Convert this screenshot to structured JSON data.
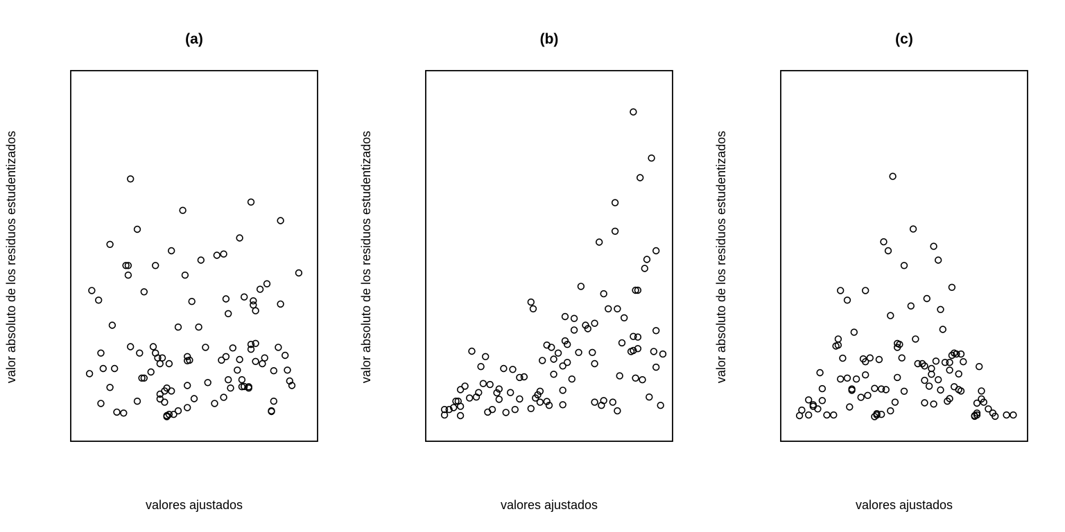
{
  "chart_data": [
    {
      "type": "scatter",
      "title": "(a)",
      "xlabel": "valores ajustados",
      "ylabel": "valor absoluto de los residuos estudentizados",
      "axes": "none",
      "xlim": [
        0,
        100
      ],
      "ylim": [
        0,
        100
      ],
      "points": [
        [
          4,
          17.2
        ],
        [
          5,
          43.1
        ],
        [
          8,
          40.1
        ],
        [
          9,
          7.9
        ],
        [
          9,
          23.6
        ],
        [
          10,
          18.8
        ],
        [
          13,
          12.9
        ],
        [
          13,
          57.5
        ],
        [
          14,
          32.3
        ],
        [
          15,
          18.8
        ],
        [
          16,
          5.2
        ],
        [
          19,
          4.9
        ],
        [
          20,
          50.9
        ],
        [
          21,
          47.9
        ],
        [
          21,
          50.9
        ],
        [
          22,
          77.9
        ],
        [
          22,
          25.6
        ],
        [
          25,
          62.2
        ],
        [
          25,
          8.6
        ],
        [
          26,
          23.6
        ],
        [
          27,
          15.8
        ],
        [
          28,
          15.8
        ],
        [
          28,
          42.7
        ],
        [
          31,
          17.7
        ],
        [
          32,
          25.6
        ],
        [
          33,
          50.9
        ],
        [
          33,
          23.6
        ],
        [
          34,
          22.1
        ],
        [
          35,
          9.3
        ],
        [
          35,
          20.3
        ],
        [
          35,
          10.8
        ],
        [
          36,
          22.1
        ],
        [
          37,
          8.3
        ],
        [
          37,
          11.8
        ],
        [
          38,
          3.8
        ],
        [
          38,
          12.7
        ],
        [
          38,
          4.1
        ],
        [
          39,
          4.5
        ],
        [
          39,
          20.3
        ],
        [
          40,
          55.5
        ],
        [
          40,
          11.8
        ],
        [
          41,
          4.5
        ],
        [
          43,
          5.6
        ],
        [
          43,
          31.7
        ],
        [
          45,
          68.1
        ],
        [
          46,
          47.9
        ],
        [
          47,
          6.6
        ],
        [
          47,
          13.5
        ],
        [
          47,
          22.5
        ],
        [
          47,
          21.2
        ],
        [
          48,
          21.4
        ],
        [
          49,
          39.7
        ],
        [
          50,
          9.4
        ],
        [
          52,
          31.7
        ],
        [
          53,
          52.6
        ],
        [
          55,
          25.4
        ],
        [
          56,
          14.4
        ],
        [
          59,
          7.9
        ],
        [
          60,
          54.1
        ],
        [
          62,
          21.4
        ],
        [
          63,
          9.8
        ],
        [
          63,
          54.5
        ],
        [
          64,
          40.5
        ],
        [
          64,
          22.5
        ],
        [
          65,
          35.9
        ],
        [
          65,
          15.3
        ],
        [
          66,
          12.7
        ],
        [
          67,
          25.2
        ],
        [
          69,
          18.3
        ],
        [
          70,
          59.5
        ],
        [
          70,
          21.6
        ],
        [
          71,
          13.1
        ],
        [
          71,
          15.3
        ],
        [
          72,
          13.2
        ],
        [
          72,
          41.1
        ],
        [
          74,
          13.1
        ],
        [
          74,
          12.7
        ],
        [
          75,
          70.7
        ],
        [
          75,
          26.3
        ],
        [
          75,
          24.8
        ],
        [
          76,
          38.6
        ],
        [
          76,
          39.9
        ],
        [
          77,
          36.8
        ],
        [
          77,
          26.6
        ],
        [
          77,
          21.0
        ],
        [
          79,
          43.5
        ],
        [
          80,
          20.3
        ],
        [
          81,
          22.1
        ],
        [
          82,
          45.2
        ],
        [
          84,
          5.4
        ],
        [
          84,
          5.6
        ],
        [
          85,
          18.1
        ],
        [
          85,
          8.6
        ],
        [
          87,
          25.4
        ],
        [
          88,
          64.9
        ],
        [
          88,
          38.9
        ],
        [
          90,
          22.9
        ],
        [
          91,
          18.3
        ],
        [
          92,
          14.9
        ],
        [
          93,
          13.5
        ],
        [
          96,
          48.6
        ]
      ]
    },
    {
      "type": "scatter",
      "title": "(b)",
      "xlabel": "valores ajustados",
      "ylabel": "valor absoluto de los residuos estudentizados",
      "axes": "none",
      "xlim": [
        0,
        100
      ],
      "ylim": [
        0,
        100
      ],
      "points": [
        [
          4,
          4.3
        ],
        [
          4,
          6.0
        ],
        [
          6,
          6.0
        ],
        [
          8,
          6.6
        ],
        [
          9,
          8.6
        ],
        [
          10,
          8.6
        ],
        [
          11,
          12.2
        ],
        [
          11,
          7.0
        ],
        [
          11,
          4.1
        ],
        [
          13,
          13.3
        ],
        [
          15,
          9.6
        ],
        [
          16,
          24.2
        ],
        [
          18,
          9.9
        ],
        [
          19,
          11.3
        ],
        [
          20,
          19.4
        ],
        [
          21,
          14.1
        ],
        [
          22,
          22.5
        ],
        [
          23,
          5.2
        ],
        [
          24,
          13.8
        ],
        [
          25,
          6.0
        ],
        [
          27,
          11.2
        ],
        [
          28,
          12.4
        ],
        [
          28,
          9.2
        ],
        [
          30,
          18.8
        ],
        [
          31,
          5.1
        ],
        [
          33,
          11.3
        ],
        [
          34,
          18.5
        ],
        [
          35,
          6.0
        ],
        [
          37,
          9.3
        ],
        [
          37,
          16.0
        ],
        [
          39,
          16.2
        ],
        [
          42,
          6.3
        ],
        [
          42,
          39.5
        ],
        [
          43,
          37.4
        ],
        [
          44,
          9.6
        ],
        [
          45,
          10.6
        ],
        [
          46,
          11.7
        ],
        [
          46,
          8.3
        ],
        [
          47,
          21.3
        ],
        [
          49,
          26.1
        ],
        [
          49,
          8.5
        ],
        [
          50,
          7.3
        ],
        [
          51,
          25.4
        ],
        [
          52,
          17.0
        ],
        [
          52,
          21.7
        ],
        [
          54,
          23.6
        ],
        [
          56,
          12.0
        ],
        [
          56,
          19.6
        ],
        [
          56,
          7.5
        ],
        [
          57,
          35.0
        ],
        [
          57,
          27.4
        ],
        [
          58,
          26.3
        ],
        [
          58,
          20.7
        ],
        [
          60,
          15.5
        ],
        [
          61,
          34.4
        ],
        [
          61,
          30.8
        ],
        [
          63,
          23.8
        ],
        [
          64,
          44.4
        ],
        [
          66,
          32.3
        ],
        [
          67,
          31.2
        ],
        [
          69,
          23.8
        ],
        [
          70,
          32.9
        ],
        [
          70,
          20.3
        ],
        [
          70,
          8.3
        ],
        [
          72,
          58.2
        ],
        [
          73,
          7.3
        ],
        [
          74,
          8.8
        ],
        [
          74,
          42.1
        ],
        [
          76,
          37.4
        ],
        [
          78,
          8.3
        ],
        [
          79,
          61.6
        ],
        [
          79,
          70.5
        ],
        [
          80,
          5.6
        ],
        [
          80,
          37.4
        ],
        [
          81,
          16.5
        ],
        [
          82,
          26.8
        ],
        [
          83,
          34.6
        ],
        [
          86,
          24.1
        ],
        [
          87,
          24.4
        ],
        [
          87,
          28.8
        ],
        [
          87,
          98.8
        ],
        [
          88,
          15.8
        ],
        [
          88,
          43.2
        ],
        [
          89,
          25.0
        ],
        [
          89,
          28.6
        ],
        [
          89,
          43.2
        ],
        [
          90,
          78.3
        ],
        [
          91,
          15.3
        ],
        [
          92,
          50.0
        ],
        [
          93,
          52.8
        ],
        [
          94,
          9.9
        ],
        [
          95,
          84.4
        ],
        [
          96,
          24.1
        ],
        [
          97,
          19.2
        ],
        [
          97,
          30.6
        ],
        [
          97,
          55.5
        ],
        [
          99,
          7.3
        ],
        [
          100,
          23.3
        ]
      ]
    },
    {
      "type": "scatter",
      "title": "(c)",
      "xlabel": "valores ajustados",
      "ylabel": "valor absoluto de los residuos estudentizados",
      "axes": "none",
      "xlim": [
        0,
        100
      ],
      "ylim": [
        0,
        100
      ],
      "points": [
        [
          4,
          4.1
        ],
        [
          5,
          5.8
        ],
        [
          8,
          4.3
        ],
        [
          8,
          9.0
        ],
        [
          10,
          7.0
        ],
        [
          10,
          7.5
        ],
        [
          12,
          6.2
        ],
        [
          13,
          17.5
        ],
        [
          14,
          8.8
        ],
        [
          14,
          12.5
        ],
        [
          16,
          4.3
        ],
        [
          19,
          4.3
        ],
        [
          20,
          25.8
        ],
        [
          21,
          26.1
        ],
        [
          21,
          28.0
        ],
        [
          22,
          43.1
        ],
        [
          22,
          15.5
        ],
        [
          23,
          22.0
        ],
        [
          25,
          40.1
        ],
        [
          25,
          15.8
        ],
        [
          26,
          6.8
        ],
        [
          27,
          12.0
        ],
        [
          27,
          12.4
        ],
        [
          28,
          30.1
        ],
        [
          29,
          15.5
        ],
        [
          31,
          9.8
        ],
        [
          32,
          21.8
        ],
        [
          33,
          20.9
        ],
        [
          33,
          16.8
        ],
        [
          33,
          43.1
        ],
        [
          34,
          10.4
        ],
        [
          35,
          22.1
        ],
        [
          37,
          12.6
        ],
        [
          37,
          3.8
        ],
        [
          38,
          4.7
        ],
        [
          38,
          4.3
        ],
        [
          39,
          21.6
        ],
        [
          40,
          12.4
        ],
        [
          40,
          4.5
        ],
        [
          41,
          58.3
        ],
        [
          42,
          12.2
        ],
        [
          43,
          55.5
        ],
        [
          44,
          5.6
        ],
        [
          44,
          35.3
        ],
        [
          45,
          78.7
        ],
        [
          46,
          8.3
        ],
        [
          47,
          16.0
        ],
        [
          47,
          25.4
        ],
        [
          47,
          26.6
        ],
        [
          48,
          26.3
        ],
        [
          49,
          22.1
        ],
        [
          50,
          11.7
        ],
        [
          50,
          50.9
        ],
        [
          53,
          38.3
        ],
        [
          54,
          62.3
        ],
        [
          55,
          28.0
        ],
        [
          56,
          20.3
        ],
        [
          58,
          20.3
        ],
        [
          59,
          15.1
        ],
        [
          59,
          8.1
        ],
        [
          59,
          19.6
        ],
        [
          60,
          40.6
        ],
        [
          61,
          13.3
        ],
        [
          62,
          18.8
        ],
        [
          62,
          17.0
        ],
        [
          63,
          56.9
        ],
        [
          63,
          7.7
        ],
        [
          64,
          21.1
        ],
        [
          65,
          15.3
        ],
        [
          65,
          52.6
        ],
        [
          66,
          12.1
        ],
        [
          66,
          37.2
        ],
        [
          67,
          31.0
        ],
        [
          68,
          20.7
        ],
        [
          69,
          8.6
        ],
        [
          70,
          20.7
        ],
        [
          70,
          18.3
        ],
        [
          70,
          9.4
        ],
        [
          71,
          44.1
        ],
        [
          71,
          22.9
        ],
        [
          72,
          13.1
        ],
        [
          72,
          23.6
        ],
        [
          73,
          23.3
        ],
        [
          74,
          12.2
        ],
        [
          74,
          17.1
        ],
        [
          75,
          23.3
        ],
        [
          75,
          11.8
        ],
        [
          76,
          20.9
        ],
        [
          81,
          3.9
        ],
        [
          81,
          4.1
        ],
        [
          82,
          4.3
        ],
        [
          82,
          4.9
        ],
        [
          82,
          8.0
        ],
        [
          83,
          19.4
        ],
        [
          84,
          9.3
        ],
        [
          84,
          11.8
        ],
        [
          85,
          8.3
        ],
        [
          87,
          6.2
        ],
        [
          89,
          4.9
        ],
        [
          90,
          3.9
        ],
        [
          95,
          4.3
        ],
        [
          98,
          4.3
        ]
      ]
    }
  ]
}
